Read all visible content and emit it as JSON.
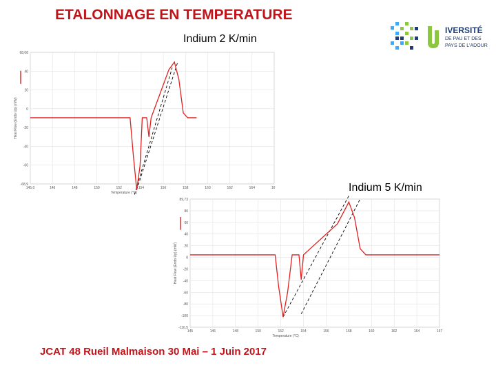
{
  "title": "ETALONNAGE EN TEMPERATURE",
  "footer": "JCAT 48 Rueil Malmaison 30 Mai – 1 Juin 2017",
  "logo": {
    "line1": "IVERSITÉ",
    "line2": "DE PAU ET DES",
    "line3": "PAYS DE L'ADOUR"
  },
  "colors": {
    "title": "#c0141b",
    "curve": "#e02020",
    "logo_blue": "#1d3c78",
    "logo_green": "#8dc63f",
    "logo_cyan": "#3fa9f5"
  },
  "chart_data": [
    {
      "type": "line",
      "title": "Indium  2 K/min",
      "xlabel": "Temperature (°C)",
      "ylabel": "Heat Flow (Endo Up) (mW)",
      "xlim": [
        145,
        167
      ],
      "ylim": [
        -68.9,
        68.08
      ],
      "x_ticks": [
        "145,0",
        "146",
        "148",
        "150",
        "152",
        "154",
        "156",
        "158",
        "160",
        "162",
        "164",
        "167"
      ],
      "y_ticks": [
        "68,08",
        "40",
        "20",
        "0",
        "-20",
        "-40",
        "-60",
        "-68,9"
      ],
      "series": [
        {
          "values": [
            [
              145,
              0
            ],
            [
              154,
              0
            ],
            [
              154.3,
              -40
            ],
            [
              154.6,
              -75
            ],
            [
              154.9,
              -50
            ],
            [
              155.1,
              0
            ],
            [
              155.5,
              0
            ],
            [
              155.7,
              -20
            ],
            [
              155.9,
              0
            ],
            [
              157.5,
              50
            ],
            [
              158,
              58
            ],
            [
              158.4,
              40
            ],
            [
              158.8,
              5
            ],
            [
              159.2,
              0
            ],
            [
              160,
              0
            ]
          ]
        }
      ],
      "tangent_lines": [
        {
          "x": [
            154.6,
            158.3
          ],
          "y": [
            -75,
            58
          ]
        },
        {
          "x": [
            154.4,
            157.8
          ],
          "y": [
            -80,
            52
          ]
        }
      ]
    },
    {
      "type": "line",
      "title": "Indium 5 K/min",
      "xlabel": "Temperature (°C)",
      "ylabel": "Heat Flow (Endo Up) (mW)",
      "xlim": [
        145,
        167
      ],
      "ylim": [
        -116.5,
        89.73
      ],
      "x_ticks": [
        "145",
        "146",
        "148",
        "150",
        "152",
        "154",
        "156",
        "158",
        "160",
        "162",
        "164",
        "167"
      ],
      "y_ticks": [
        "89,73",
        "80",
        "60",
        "40",
        "20",
        "0",
        "-20",
        "-40",
        "-60",
        "-80",
        "-100",
        "-116,5"
      ],
      "series": [
        {
          "values": [
            [
              145,
              0
            ],
            [
              152.5,
              0
            ],
            [
              152.8,
              -50
            ],
            [
              153.2,
              -100
            ],
            [
              153.6,
              -60
            ],
            [
              154,
              0
            ],
            [
              154.6,
              0
            ],
            [
              154.8,
              -40
            ],
            [
              155,
              0
            ],
            [
              158,
              50
            ],
            [
              159,
              85
            ],
            [
              159.5,
              60
            ],
            [
              160,
              10
            ],
            [
              160.5,
              0
            ],
            [
              167,
              0
            ]
          ]
        }
      ],
      "tangent_lines": [
        {
          "x": [
            153.2,
            159
          ],
          "y": [
            -100,
            95
          ]
        },
        {
          "x": [
            154.8,
            160
          ],
          "y": [
            -95,
            90
          ]
        }
      ]
    }
  ]
}
